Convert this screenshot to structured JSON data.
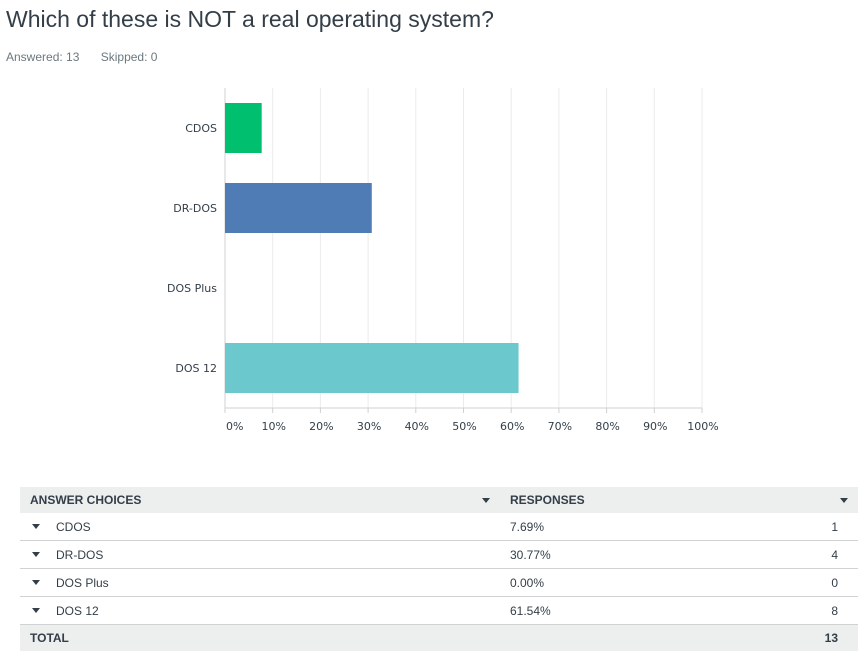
{
  "question": {
    "title": "Which of these is NOT a real operating system?",
    "answered": "Answered: 13",
    "skipped": "Skipped: 0"
  },
  "colors": {
    "CDOS": "#00bf6f",
    "DR-DOS": "#507cb6",
    "DOS Plus": "#f9be00",
    "DOS 12": "#6bc8cd"
  },
  "chart_data": {
    "type": "bar",
    "orientation": "horizontal",
    "categories": [
      "CDOS",
      "DR-DOS",
      "DOS Plus",
      "DOS 12"
    ],
    "values": [
      7.69,
      30.77,
      0,
      61.54
    ],
    "xlim": [
      0,
      100
    ],
    "xticks": [
      "0%",
      "10%",
      "20%",
      "30%",
      "40%",
      "50%",
      "60%",
      "70%",
      "80%",
      "90%",
      "100%"
    ],
    "grid": true
  },
  "table": {
    "header_choices": "ANSWER CHOICES",
    "header_responses": "RESPONSES",
    "rows": [
      {
        "choice": "CDOS",
        "percent": "7.69%",
        "count": "1"
      },
      {
        "choice": "DR-DOS",
        "percent": "30.77%",
        "count": "4"
      },
      {
        "choice": "DOS Plus",
        "percent": "0.00%",
        "count": "0"
      },
      {
        "choice": "DOS 12",
        "percent": "61.54%",
        "count": "8"
      }
    ],
    "total_label": "TOTAL",
    "total_count": "13"
  }
}
